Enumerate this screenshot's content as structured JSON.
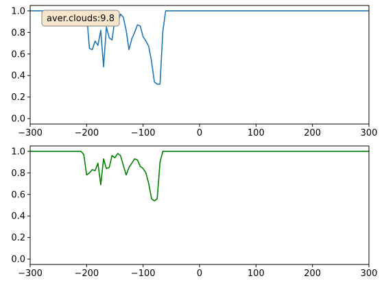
{
  "chart_data": [
    {
      "type": "line",
      "annotation": "aver.clouds:9.8",
      "xlim": [
        -300,
        300
      ],
      "ylim": [
        -0.05,
        1.05
      ],
      "xticks": [
        -300,
        -200,
        -100,
        0,
        100,
        200,
        300
      ],
      "yticks": [
        0.0,
        0.2,
        0.4,
        0.6,
        0.8,
        1.0
      ],
      "grid": false,
      "series": [
        {
          "color": "#1f77b4",
          "x": [
            -300,
            -205,
            -200,
            -195,
            -190,
            -185,
            -180,
            -175,
            -170,
            -165,
            -160,
            -155,
            -150,
            -145,
            -140,
            -135,
            -130,
            -125,
            -120,
            -115,
            -110,
            -105,
            -100,
            -95,
            -90,
            -85,
            -80,
            -75,
            -70,
            -65,
            -60,
            -55,
            -50,
            -45,
            -40,
            -35,
            -30,
            -25,
            -20,
            300
          ],
          "y": [
            1.0,
            1.0,
            0.97,
            0.65,
            0.64,
            0.72,
            0.68,
            0.82,
            0.48,
            0.85,
            0.75,
            0.73,
            0.92,
            0.88,
            0.97,
            0.94,
            0.82,
            0.64,
            0.74,
            0.8,
            0.87,
            0.86,
            0.76,
            0.72,
            0.67,
            0.53,
            0.34,
            0.32,
            0.32,
            0.81,
            1.0,
            1.0,
            1.0,
            1.0,
            1.0,
            1.0,
            1.0,
            1.0,
            1.0,
            1.0
          ]
        }
      ]
    },
    {
      "type": "line",
      "xlim": [
        -300,
        300
      ],
      "ylim": [
        -0.05,
        1.05
      ],
      "xticks": [
        -300,
        -200,
        -100,
        0,
        100,
        200,
        300
      ],
      "yticks": [
        0.0,
        0.2,
        0.4,
        0.6,
        0.8,
        1.0
      ],
      "grid": false,
      "series": [
        {
          "color": "#008000",
          "x": [
            -300,
            -210,
            -205,
            -200,
            -195,
            -190,
            -185,
            -180,
            -175,
            -170,
            -165,
            -160,
            -155,
            -150,
            -145,
            -140,
            -135,
            -130,
            -125,
            -120,
            -115,
            -110,
            -105,
            -100,
            -95,
            -90,
            -85,
            -80,
            -75,
            -70,
            -65,
            -60,
            -55,
            -50,
            -45,
            -40,
            -35,
            -30,
            -25,
            300
          ],
          "y": [
            1.0,
            1.0,
            0.97,
            0.78,
            0.8,
            0.83,
            0.82,
            0.89,
            0.69,
            0.93,
            0.84,
            0.85,
            0.96,
            0.94,
            0.98,
            0.96,
            0.87,
            0.78,
            0.85,
            0.89,
            0.93,
            0.92,
            0.86,
            0.84,
            0.8,
            0.7,
            0.56,
            0.54,
            0.56,
            0.9,
            1.0,
            1.0,
            1.0,
            1.0,
            1.0,
            1.0,
            1.0,
            1.0,
            1.0,
            1.0
          ]
        }
      ]
    }
  ]
}
